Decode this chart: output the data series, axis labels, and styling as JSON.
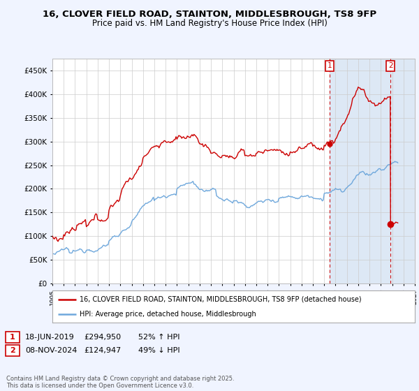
{
  "title": "16, CLOVER FIELD ROAD, STAINTON, MIDDLESBROUGH, TS8 9FP",
  "subtitle": "Price paid vs. HM Land Registry's House Price Index (HPI)",
  "ylim": [
    0,
    475000
  ],
  "yticks": [
    0,
    50000,
    100000,
    150000,
    200000,
    250000,
    300000,
    350000,
    400000,
    450000
  ],
  "ytick_labels": [
    "£0",
    "£50K",
    "£100K",
    "£150K",
    "£200K",
    "£250K",
    "£300K",
    "£350K",
    "£400K",
    "£450K"
  ],
  "x_start_year": 1995,
  "x_end_year": 2027,
  "hpi_color": "#6fa8dc",
  "price_color": "#cc0000",
  "shade_color": "#dde8f5",
  "marker1_year": 2019.46,
  "marker1_price": 294950,
  "marker2_year": 2024.86,
  "marker2_price": 124947,
  "legend_label1": "16, CLOVER FIELD ROAD, STAINTON, MIDDLESBROUGH, TS8 9FP (detached house)",
  "legend_label2": "HPI: Average price, detached house, Middlesbrough",
  "marker1_text_date": "18-JUN-2019",
  "marker1_text_price": "£294,950",
  "marker1_text_hpi": "52% ↑ HPI",
  "marker2_text_date": "08-NOV-2024",
  "marker2_text_price": "£124,947",
  "marker2_text_hpi": "49% ↓ HPI",
  "footer": "Contains HM Land Registry data © Crown copyright and database right 2025.\nThis data is licensed under the Open Government Licence v3.0.",
  "background_color": "#f0f4ff",
  "plot_bg_color": "#ffffff",
  "grid_color": "#cccccc"
}
